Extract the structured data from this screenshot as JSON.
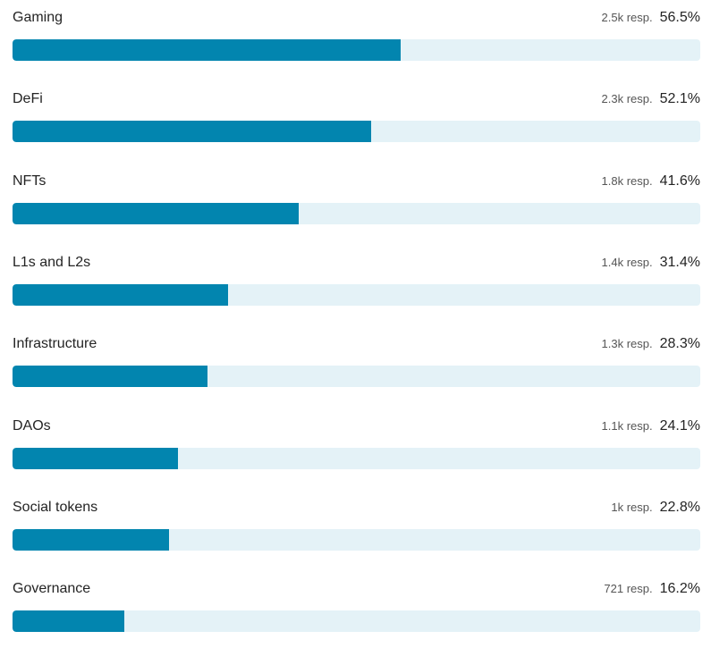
{
  "chart_data": {
    "type": "bar",
    "orientation": "horizontal",
    "categories": [
      "Gaming",
      "DeFi",
      "NFTs",
      "L1s and L2s",
      "Infrastructure",
      "DAOs",
      "Social tokens",
      "Governance"
    ],
    "values": [
      56.5,
      52.1,
      41.6,
      31.4,
      28.3,
      24.1,
      22.8,
      16.2
    ],
    "value_labels": [
      "56.5%",
      "52.1%",
      "41.6%",
      "31.4%",
      "28.3%",
      "24.1%",
      "22.8%",
      "16.2%"
    ],
    "responses": [
      "2.5k resp.",
      "2.3k resp.",
      "1.8k resp.",
      "1.4k resp.",
      "1.3k resp.",
      "1.1k resp.",
      "1k resp.",
      "721 resp."
    ],
    "xlim": [
      0,
      100
    ],
    "grid": false,
    "legend": "none",
    "colors": {
      "fill": "#0285af",
      "track": "#e4f2f7"
    }
  }
}
